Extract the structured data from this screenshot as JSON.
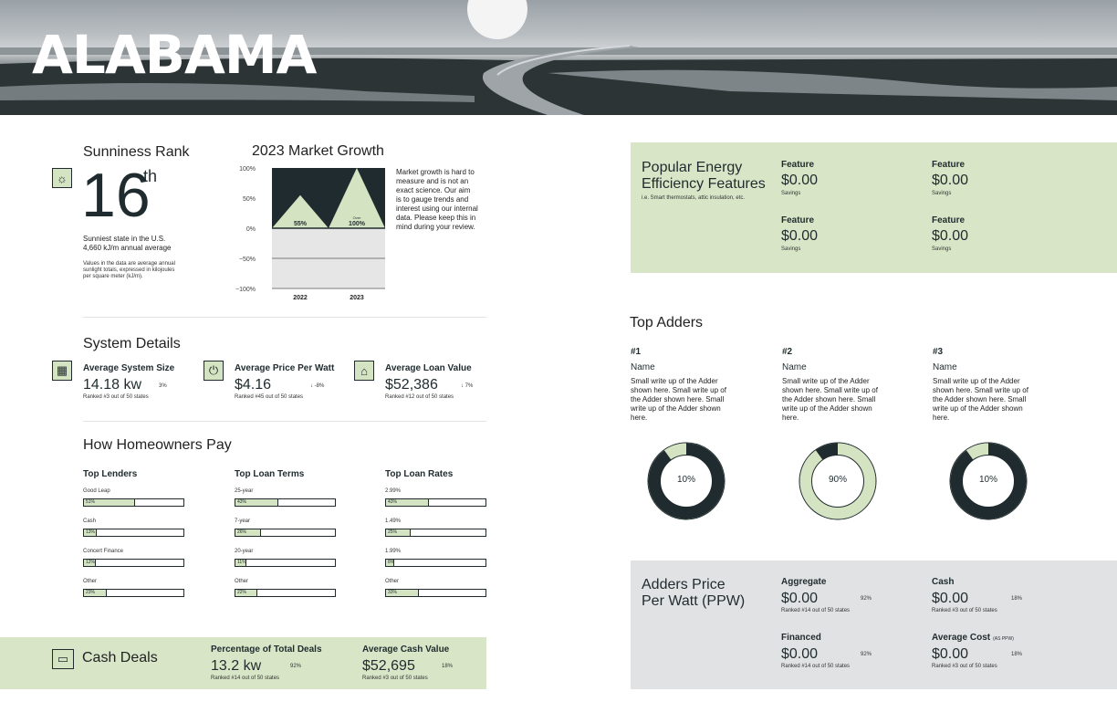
{
  "header": {
    "title": "ALABAMA"
  },
  "sunniness": {
    "title": "Sunniness Rank",
    "rank": "16",
    "suffix": "th",
    "desc1": "Sunniest state in the U.S.",
    "desc2": "4,660 kJ/m annual average",
    "note1": "Values in the data are average annual",
    "note2": "sunlight totals, expressed in kilojoules",
    "note3": "per square meter (kJ/m)."
  },
  "market": {
    "title": "2023 Market Growth",
    "note": [
      "Market growth is hard to",
      "measure and is not an",
      "exact science. Our aim",
      "is to gauge trends and",
      "interest using our internal",
      "data. Please keep this in",
      "mind during your review."
    ]
  },
  "chart_data": {
    "type": "area",
    "title": "2023 Market Growth",
    "categories": [
      "2022",
      "2023"
    ],
    "values": [
      55,
      100
    ],
    "labels": [
      "55%",
      "100%"
    ],
    "over_label": "Over",
    "ylim": [
      -100,
      100
    ],
    "yticks": [
      "100%",
      "50%",
      "0%",
      "−50%",
      "−100%"
    ],
    "colors": {
      "dark": "#1f2b2e",
      "fill": "#d4e3c1",
      "neg": "#e6e6e6"
    }
  },
  "system": {
    "title": "System Details",
    "items": [
      {
        "icon": "solar-panel-icon",
        "label": "Average System Size",
        "value": "14.18 kw",
        "change": "3%",
        "rank": "Ranked #3 out of 50 states"
      },
      {
        "icon": "plug-dollar-icon",
        "label": "Average Price Per Watt",
        "value": "$4.16",
        "change": "↓ -8%",
        "rank": "Ranked #45 out of 50 states"
      },
      {
        "icon": "bank-icon",
        "label": "Average Loan Value",
        "value": "$52,386",
        "change": "↓ 7%",
        "rank": "Ranked #12 out of 50 states"
      }
    ]
  },
  "pay": {
    "title": "How Homeowners Pay",
    "columns": [
      {
        "title": "Top Lenders",
        "rows": [
          {
            "name": "Good Leap",
            "pct": "51%",
            "frac": 0.51
          },
          {
            "name": "Cash",
            "pct": "13%",
            "frac": 0.13
          },
          {
            "name": "Concert Finance",
            "pct": "12%",
            "frac": 0.12
          },
          {
            "name": "Other",
            "pct": "23%",
            "frac": 0.23
          }
        ]
      },
      {
        "title": "Top Loan Terms",
        "rows": [
          {
            "name": "25-year",
            "pct": "43%",
            "frac": 0.43
          },
          {
            "name": "7-year",
            "pct": "26%",
            "frac": 0.26
          },
          {
            "name": "20-year",
            "pct": "11%",
            "frac": 0.11
          },
          {
            "name": "Other",
            "pct": "22%",
            "frac": 0.22
          }
        ]
      },
      {
        "title": "Top Loan Rates",
        "rows": [
          {
            "name": "2.99%",
            "pct": "43%",
            "frac": 0.43
          },
          {
            "name": "1.49%",
            "pct": "25%",
            "frac": 0.25
          },
          {
            "name": "1.99%",
            "pct": "8%",
            "frac": 0.08
          },
          {
            "name": "Other",
            "pct": "33%",
            "frac": 0.33
          }
        ]
      }
    ]
  },
  "cash": {
    "title": "Cash Deals",
    "items": [
      {
        "label": "Percentage of Total Deals",
        "value": "13.2 kw",
        "change": "92%",
        "rank": "Ranked #14 out of 50 states"
      },
      {
        "label": "Average Cash Value",
        "value": "$52,695",
        "change": "18%",
        "rank": "Ranked #3 out of 50 states"
      }
    ]
  },
  "energy": {
    "title1": "Popular Energy",
    "title2": "Efficiency Features",
    "subtitle": "i.e. Smart thermostats, attic insulation, etc.",
    "features": [
      {
        "label": "Feature",
        "value": "$0.00",
        "sub": "Savings"
      },
      {
        "label": "Feature",
        "value": "$0.00",
        "sub": "Savings"
      },
      {
        "label": "Feature",
        "value": "$0.00",
        "sub": "Savings"
      },
      {
        "label": "Feature",
        "value": "$0.00",
        "sub": "Savings"
      }
    ]
  },
  "adders": {
    "title": "Top Adders",
    "items": [
      {
        "num": "#1",
        "name": "Name",
        "desc": [
          "Small write up of the Adder",
          "shown here. Small write up of",
          "the Adder shown here. Small",
          "write up of the Adder shown",
          "here."
        ],
        "pct_label": "10%",
        "pct": 0.9,
        "inverted": false
      },
      {
        "num": "#2",
        "name": "Name",
        "desc": [
          "Small write up of the Adder",
          "shown here. Small write up of",
          "the Adder shown here. Small",
          "write up of the Adder shown",
          "here."
        ],
        "pct_label": "90%",
        "pct": 0.9,
        "inverted": true
      },
      {
        "num": "#3",
        "name": "Name",
        "desc": [
          "Small write up of the Adder",
          "shown here. Small write up of",
          "the Adder shown here. Small",
          "write up of the Adder shown",
          "here."
        ],
        "pct_label": "10%",
        "pct": 0.9,
        "inverted": false
      }
    ]
  },
  "ppw": {
    "title1": "Adders Price",
    "title2": "Per Watt (PPW)",
    "items": [
      {
        "label": "Aggregate",
        "extra": "",
        "value": "$0.00",
        "change": "92%",
        "rank": "Ranked #14 out of 50 states"
      },
      {
        "label": "Cash",
        "extra": "",
        "value": "$0.00",
        "change": "18%",
        "rank": "Ranked #3 out of 50 states"
      },
      {
        "label": "Financed",
        "extra": "",
        "value": "$0.00",
        "change": "92%",
        "rank": "Ranked #14 out of 50 states"
      },
      {
        "label": "Average Cost",
        "extra": "(AS PPW)",
        "value": "$0.00",
        "change": "18%",
        "rank": "Ranked #3 out of 50 states"
      }
    ]
  }
}
